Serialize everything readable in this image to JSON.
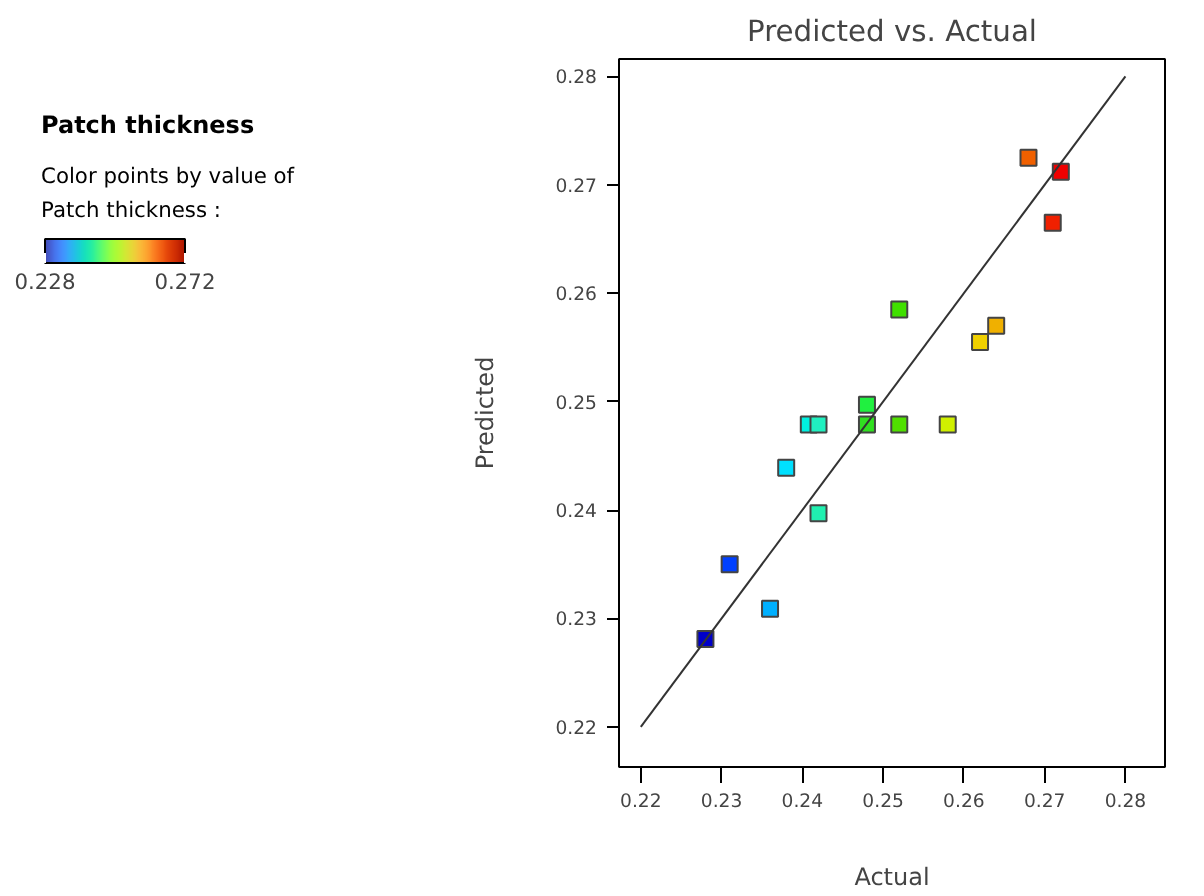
{
  "chart_data": {
    "type": "scatter",
    "title": "Predicted vs. Actual",
    "xlabel": "Actual",
    "ylabel": "Predicted",
    "annotations": [
      "Patch thickness"
    ],
    "clabel": "Color points by value of\nPatch thickness :",
    "clim": [
      0.228,
      0.272
    ],
    "cticks": [
      0.228,
      0.272
    ],
    "xlim": [
      0.2173,
      0.2849
    ],
    "ylim": [
      0.2163,
      0.2816
    ],
    "xticks": [
      0.22,
      0.23,
      0.24,
      0.25,
      0.26,
      0.27,
      0.28
    ],
    "yticks": [
      0.22,
      0.23,
      0.24,
      0.25,
      0.26,
      0.27,
      0.28
    ],
    "grid": false,
    "series": [
      {
        "type": "scatter",
        "marker": "square",
        "x": [
          0.228,
          0.231,
          0.236,
          0.238,
          0.2408,
          0.242,
          0.242,
          0.248,
          0.248,
          0.252,
          0.252,
          0.258,
          0.262,
          0.264,
          0.268,
          0.271,
          0.272
        ],
        "values": [
          0.2281,
          0.235,
          0.2309,
          0.2439,
          0.2479,
          0.2479,
          0.2397,
          0.2497,
          0.2479,
          0.2585,
          0.2479,
          0.2479,
          0.2555,
          0.257,
          0.2725,
          0.2665,
          0.2712
        ],
        "colors": [
          "#0000c8",
          "#0040ff",
          "#00b0ff",
          "#00e0ff",
          "#00f0e0",
          "#20f0c0",
          "#20f0b0",
          "#20f040",
          "#30e020",
          "#40e000",
          "#50e000",
          "#d0f000",
          "#f0d000",
          "#f0b000",
          "#f06000",
          "#f02000",
          "#f00000"
        ]
      },
      {
        "type": "line",
        "x": [
          0.22,
          0.28
        ],
        "values": [
          0.22,
          0.28
        ],
        "color": "#333333"
      }
    ]
  }
}
